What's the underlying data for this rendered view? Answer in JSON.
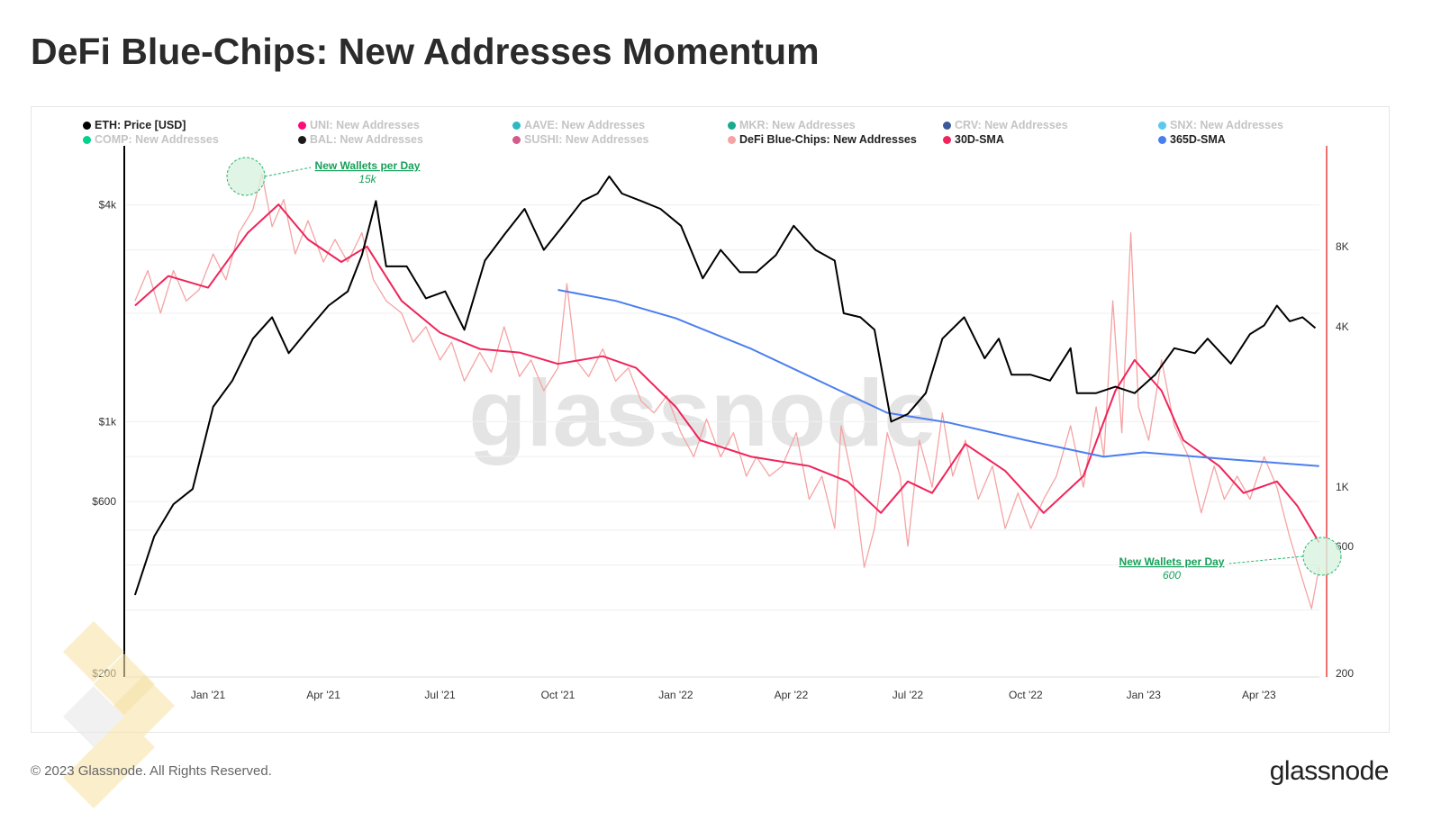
{
  "title": "DeFi Blue-Chips: New Addresses Momentum",
  "footer": "© 2023 Glassnode. All Rights Reserved.",
  "logo": "glassnode",
  "watermark": "glassnode",
  "legend": [
    {
      "label": "ETH: Price [USD]",
      "color": "#000000",
      "active": true
    },
    {
      "label": "UNI: New Addresses",
      "color": "#ff0a7a",
      "active": false
    },
    {
      "label": "AAVE: New Addresses",
      "color": "#2eb8c4",
      "active": false
    },
    {
      "label": "MKR: New Addresses",
      "color": "#1aaa8e",
      "active": false
    },
    {
      "label": "CRV: New Addresses",
      "color": "#3a5a9a",
      "active": false
    },
    {
      "label": "SNX: New Addresses",
      "color": "#5ac8f0",
      "active": false
    },
    {
      "label": "COMP: New Addresses",
      "color": "#00d18b",
      "active": false
    },
    {
      "label": "BAL: New Addresses",
      "color": "#1a1a1a",
      "active": false
    },
    {
      "label": "SUSHI: New Addresses",
      "color": "#d45a8a",
      "active": false
    },
    {
      "label": "DeFi Blue-Chips: New Addresses",
      "color": "#f5a3a3",
      "active": true
    },
    {
      "label": "30D-SMA",
      "color": "#f0245a",
      "active": true
    },
    {
      "label": "365D-SMA",
      "color": "#4a7ef0",
      "active": true
    }
  ],
  "annotations": [
    {
      "title": "New Wallets per Day",
      "value": "15k",
      "date": "2021-02-12"
    },
    {
      "title": "New Wallets per Day",
      "value": "600",
      "date": "2023-05-15"
    }
  ],
  "chart_data": {
    "type": "line",
    "title": "DeFi Blue-Chips: New Addresses Momentum",
    "x_ticks": [
      {
        "date": "2021-01-01",
        "label": "Jan '21"
      },
      {
        "date": "2021-04-01",
        "label": "Apr '21"
      },
      {
        "date": "2021-07-01",
        "label": "Jul '21"
      },
      {
        "date": "2021-10-01",
        "label": "Oct '21"
      },
      {
        "date": "2022-01-01",
        "label": "Jan '22"
      },
      {
        "date": "2022-04-01",
        "label": "Apr '22"
      },
      {
        "date": "2022-07-01",
        "label": "Jul '22"
      },
      {
        "date": "2022-10-01",
        "label": "Oct '22"
      },
      {
        "date": "2023-01-01",
        "label": "Jan '23"
      },
      {
        "date": "2023-04-01",
        "label": "Apr '23"
      }
    ],
    "y_left": {
      "scale": "log",
      "range": [
        200,
        7000
      ],
      "ticks": [
        {
          "v": 200,
          "label": "$200"
        },
        {
          "v": 600,
          "label": "$600"
        },
        {
          "v": 1000,
          "label": "$1k"
        },
        {
          "v": 4000,
          "label": "$4k"
        }
      ]
    },
    "y_right": {
      "scale": "log",
      "range": [
        200,
        16000
      ],
      "ticks": [
        {
          "v": 200,
          "label": "200"
        },
        {
          "v": 600,
          "label": "600"
        },
        {
          "v": 1000,
          "label": "1K"
        },
        {
          "v": 4000,
          "label": "4K"
        },
        {
          "v": 8000,
          "label": "8K"
        }
      ]
    },
    "series": [
      {
        "name": "DeFi Blue-Chips: New Addresses",
        "axis": "right",
        "color": "#f5a3a3",
        "width": 1.3,
        "points": [
          [
            "2020-11-05",
            5000
          ],
          [
            "2020-11-15",
            6500
          ],
          [
            "2020-11-25",
            4500
          ],
          [
            "2020-12-05",
            6500
          ],
          [
            "2020-12-15",
            5000
          ],
          [
            "2020-12-25",
            5500
          ],
          [
            "2021-01-05",
            7500
          ],
          [
            "2021-01-15",
            6000
          ],
          [
            "2021-01-25",
            9000
          ],
          [
            "2021-02-05",
            11000
          ],
          [
            "2021-02-12",
            15000
          ],
          [
            "2021-02-20",
            9500
          ],
          [
            "2021-03-01",
            12000
          ],
          [
            "2021-03-10",
            7500
          ],
          [
            "2021-03-20",
            10000
          ],
          [
            "2021-04-01",
            7000
          ],
          [
            "2021-04-10",
            8500
          ],
          [
            "2021-04-20",
            7000
          ],
          [
            "2021-05-01",
            9000
          ],
          [
            "2021-05-10",
            6000
          ],
          [
            "2021-05-20",
            5000
          ],
          [
            "2021-06-01",
            4500
          ],
          [
            "2021-06-10",
            3500
          ],
          [
            "2021-06-20",
            4000
          ],
          [
            "2021-07-01",
            3000
          ],
          [
            "2021-07-10",
            3500
          ],
          [
            "2021-07-20",
            2500
          ],
          [
            "2021-08-01",
            3200
          ],
          [
            "2021-08-10",
            2700
          ],
          [
            "2021-08-20",
            4000
          ],
          [
            "2021-09-01",
            2600
          ],
          [
            "2021-09-10",
            3000
          ],
          [
            "2021-09-20",
            2300
          ],
          [
            "2021-10-01",
            2800
          ],
          [
            "2021-10-08",
            5800
          ],
          [
            "2021-10-15",
            3000
          ],
          [
            "2021-10-25",
            2600
          ],
          [
            "2021-11-05",
            3300
          ],
          [
            "2021-11-15",
            2500
          ],
          [
            "2021-11-25",
            2800
          ],
          [
            "2021-12-05",
            2100
          ],
          [
            "2021-12-15",
            1900
          ],
          [
            "2021-12-25",
            2200
          ],
          [
            "2022-01-05",
            1600
          ],
          [
            "2022-01-15",
            1300
          ],
          [
            "2022-01-25",
            1800
          ],
          [
            "2022-02-05",
            1300
          ],
          [
            "2022-02-15",
            1600
          ],
          [
            "2022-02-25",
            1100
          ],
          [
            "2022-03-05",
            1300
          ],
          [
            "2022-03-15",
            1100
          ],
          [
            "2022-03-25",
            1200
          ],
          [
            "2022-04-05",
            1600
          ],
          [
            "2022-04-15",
            900
          ],
          [
            "2022-04-25",
            1100
          ],
          [
            "2022-05-05",
            700
          ],
          [
            "2022-05-10",
            1700
          ],
          [
            "2022-05-20",
            1000
          ],
          [
            "2022-05-28",
            500
          ],
          [
            "2022-06-05",
            700
          ],
          [
            "2022-06-15",
            1600
          ],
          [
            "2022-06-25",
            1100
          ],
          [
            "2022-07-01",
            600
          ],
          [
            "2022-07-10",
            1500
          ],
          [
            "2022-07-20",
            1000
          ],
          [
            "2022-07-28",
            1900
          ],
          [
            "2022-08-05",
            1100
          ],
          [
            "2022-08-15",
            1500
          ],
          [
            "2022-08-25",
            900
          ],
          [
            "2022-09-05",
            1200
          ],
          [
            "2022-09-15",
            700
          ],
          [
            "2022-09-25",
            950
          ],
          [
            "2022-10-05",
            700
          ],
          [
            "2022-10-15",
            900
          ],
          [
            "2022-10-25",
            1100
          ],
          [
            "2022-11-05",
            1700
          ],
          [
            "2022-11-15",
            1000
          ],
          [
            "2022-11-25",
            2000
          ],
          [
            "2022-12-01",
            1300
          ],
          [
            "2022-12-08",
            5000
          ],
          [
            "2022-12-15",
            1600
          ],
          [
            "2022-12-22",
            9000
          ],
          [
            "2022-12-28",
            2000
          ],
          [
            "2023-01-05",
            1500
          ],
          [
            "2023-01-15",
            3000
          ],
          [
            "2023-01-25",
            1700
          ],
          [
            "2023-02-05",
            1300
          ],
          [
            "2023-02-15",
            800
          ],
          [
            "2023-02-25",
            1200
          ],
          [
            "2023-03-05",
            900
          ],
          [
            "2023-03-15",
            1100
          ],
          [
            "2023-03-25",
            900
          ],
          [
            "2023-04-05",
            1300
          ],
          [
            "2023-04-15",
            1000
          ],
          [
            "2023-04-25",
            650
          ],
          [
            "2023-05-05",
            450
          ],
          [
            "2023-05-12",
            350
          ],
          [
            "2023-05-18",
            500
          ]
        ]
      },
      {
        "name": "30D-SMA",
        "axis": "right",
        "color": "#f0245a",
        "width": 2,
        "points": [
          [
            "2020-11-05",
            4800
          ],
          [
            "2020-12-01",
            6200
          ],
          [
            "2021-01-01",
            5600
          ],
          [
            "2021-02-01",
            9000
          ],
          [
            "2021-02-25",
            11500
          ],
          [
            "2021-03-20",
            8500
          ],
          [
            "2021-04-15",
            7000
          ],
          [
            "2021-05-05",
            8000
          ],
          [
            "2021-06-01",
            5000
          ],
          [
            "2021-07-01",
            3800
          ],
          [
            "2021-08-01",
            3300
          ],
          [
            "2021-09-01",
            3200
          ],
          [
            "2021-10-01",
            2900
          ],
          [
            "2021-11-05",
            3100
          ],
          [
            "2021-12-01",
            2800
          ],
          [
            "2022-01-01",
            2000
          ],
          [
            "2022-01-20",
            1500
          ],
          [
            "2022-03-01",
            1300
          ],
          [
            "2022-04-15",
            1200
          ],
          [
            "2022-05-15",
            1050
          ],
          [
            "2022-06-10",
            800
          ],
          [
            "2022-07-01",
            1050
          ],
          [
            "2022-07-20",
            950
          ],
          [
            "2022-08-15",
            1450
          ],
          [
            "2022-09-15",
            1150
          ],
          [
            "2022-10-15",
            800
          ],
          [
            "2022-11-15",
            1100
          ],
          [
            "2022-12-10",
            2300
          ],
          [
            "2022-12-25",
            3000
          ],
          [
            "2023-01-15",
            2300
          ],
          [
            "2023-02-01",
            1500
          ],
          [
            "2023-03-01",
            1200
          ],
          [
            "2023-03-20",
            950
          ],
          [
            "2023-04-15",
            1050
          ],
          [
            "2023-05-01",
            850
          ],
          [
            "2023-05-18",
            620
          ]
        ]
      },
      {
        "name": "365D-SMA",
        "axis": "right",
        "color": "#4a7ef0",
        "width": 2,
        "points": [
          [
            "2021-10-01",
            5500
          ],
          [
            "2021-11-15",
            5000
          ],
          [
            "2022-01-01",
            4300
          ],
          [
            "2022-03-01",
            3300
          ],
          [
            "2022-05-01",
            2400
          ],
          [
            "2022-06-15",
            1900
          ],
          [
            "2022-08-01",
            1750
          ],
          [
            "2022-10-01",
            1500
          ],
          [
            "2022-12-01",
            1300
          ],
          [
            "2023-01-01",
            1350
          ],
          [
            "2023-03-01",
            1280
          ],
          [
            "2023-05-18",
            1200
          ]
        ]
      },
      {
        "name": "ETH: Price [USD]",
        "axis": "left",
        "color": "#000000",
        "width": 2,
        "points": [
          [
            "2020-11-05",
            330
          ],
          [
            "2020-11-20",
            480
          ],
          [
            "2020-12-05",
            590
          ],
          [
            "2020-12-20",
            650
          ],
          [
            "2021-01-05",
            1100
          ],
          [
            "2021-01-20",
            1300
          ],
          [
            "2021-02-05",
            1700
          ],
          [
            "2021-02-20",
            1950
          ],
          [
            "2021-03-05",
            1550
          ],
          [
            "2021-03-20",
            1800
          ],
          [
            "2021-04-05",
            2100
          ],
          [
            "2021-04-20",
            2300
          ],
          [
            "2021-05-01",
            2900
          ],
          [
            "2021-05-12",
            4100
          ],
          [
            "2021-05-20",
            2700
          ],
          [
            "2021-06-05",
            2700
          ],
          [
            "2021-06-20",
            2200
          ],
          [
            "2021-07-05",
            2300
          ],
          [
            "2021-07-20",
            1800
          ],
          [
            "2021-08-05",
            2800
          ],
          [
            "2021-08-20",
            3300
          ],
          [
            "2021-09-05",
            3900
          ],
          [
            "2021-09-20",
            3000
          ],
          [
            "2021-10-05",
            3500
          ],
          [
            "2021-10-20",
            4100
          ],
          [
            "2021-11-01",
            4300
          ],
          [
            "2021-11-10",
            4800
          ],
          [
            "2021-11-20",
            4300
          ],
          [
            "2021-12-05",
            4100
          ],
          [
            "2021-12-20",
            3900
          ],
          [
            "2022-01-05",
            3500
          ],
          [
            "2022-01-22",
            2500
          ],
          [
            "2022-02-05",
            3000
          ],
          [
            "2022-02-20",
            2600
          ],
          [
            "2022-03-05",
            2600
          ],
          [
            "2022-03-20",
            2900
          ],
          [
            "2022-04-03",
            3500
          ],
          [
            "2022-04-20",
            3000
          ],
          [
            "2022-05-05",
            2800
          ],
          [
            "2022-05-12",
            2000
          ],
          [
            "2022-05-25",
            1950
          ],
          [
            "2022-06-05",
            1800
          ],
          [
            "2022-06-18",
            1000
          ],
          [
            "2022-07-01",
            1050
          ],
          [
            "2022-07-15",
            1200
          ],
          [
            "2022-07-28",
            1700
          ],
          [
            "2022-08-14",
            1950
          ],
          [
            "2022-08-30",
            1500
          ],
          [
            "2022-09-10",
            1700
          ],
          [
            "2022-09-20",
            1350
          ],
          [
            "2022-10-05",
            1350
          ],
          [
            "2022-10-20",
            1300
          ],
          [
            "2022-11-05",
            1600
          ],
          [
            "2022-11-10",
            1200
          ],
          [
            "2022-11-25",
            1200
          ],
          [
            "2022-12-10",
            1250
          ],
          [
            "2022-12-25",
            1200
          ],
          [
            "2023-01-10",
            1350
          ],
          [
            "2023-01-25",
            1600
          ],
          [
            "2023-02-10",
            1550
          ],
          [
            "2023-02-20",
            1700
          ],
          [
            "2023-03-10",
            1450
          ],
          [
            "2023-03-25",
            1750
          ],
          [
            "2023-04-05",
            1850
          ],
          [
            "2023-04-15",
            2100
          ],
          [
            "2023-04-25",
            1900
          ],
          [
            "2023-05-05",
            1950
          ],
          [
            "2023-05-15",
            1820
          ]
        ]
      }
    ],
    "grid": true,
    "legend_position": "top"
  }
}
